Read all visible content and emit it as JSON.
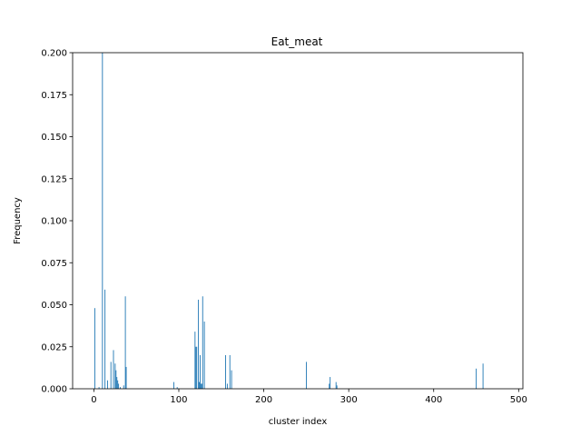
{
  "chart_data": {
    "type": "bar",
    "title": "Eat_meat",
    "xlabel": "cluster index",
    "ylabel": "Frequency",
    "xlim": [
      -25,
      505
    ],
    "ylim": [
      0,
      0.2
    ],
    "xticks": [
      0,
      100,
      200,
      300,
      400,
      500
    ],
    "xtick_labels": [
      "0",
      "100",
      "200",
      "300",
      "400",
      "500"
    ],
    "yticks": [
      0.0,
      0.025,
      0.05,
      0.075,
      0.1,
      0.125,
      0.15,
      0.175,
      0.2
    ],
    "ytick_labels": [
      "0.000",
      "0.025",
      "0.050",
      "0.075",
      "0.100",
      "0.125",
      "0.150",
      "0.175",
      "0.200"
    ],
    "grid": false,
    "bar_color": "#1f77b4",
    "bar_width": 0.8,
    "x": [
      1,
      6,
      10,
      13,
      16,
      20,
      23,
      25,
      26,
      27,
      28,
      29,
      31,
      35,
      37,
      38,
      94,
      98,
      119,
      120,
      121,
      123,
      124,
      125,
      126,
      127,
      128,
      130,
      155,
      157,
      160,
      162,
      250,
      277,
      278,
      285,
      286,
      450,
      458
    ],
    "values": [
      0.048,
      0.001,
      0.2,
      0.059,
      0.005,
      0.016,
      0.023,
      0.015,
      0.011,
      0.007,
      0.005,
      0.003,
      0.001,
      0.002,
      0.055,
      0.013,
      0.004,
      0.001,
      0.034,
      0.025,
      0.025,
      0.053,
      0.004,
      0.02,
      0.003,
      0.003,
      0.055,
      0.04,
      0.02,
      0.003,
      0.02,
      0.011,
      0.016,
      0.003,
      0.007,
      0.004,
      0.002,
      0.012,
      0.015
    ]
  }
}
